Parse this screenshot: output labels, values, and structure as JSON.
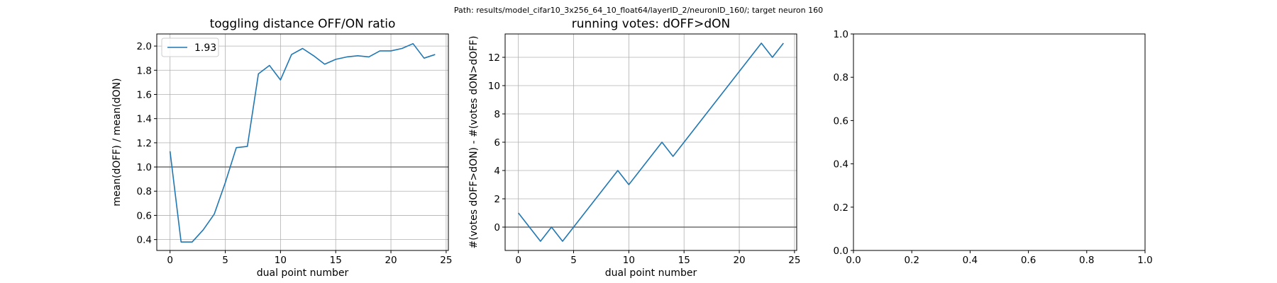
{
  "figure": {
    "suptitle": "Path: results/model_cifar10_3x256_64_10_float64/layerID_2/neuronID_160/; target neuron 160"
  },
  "chart_data": [
    {
      "type": "line",
      "title": "toggling distance OFF/ON ratio",
      "xlabel": "dual point number",
      "ylabel": "mean(dOFF) / mean(dON)",
      "xlim": [
        -1.2,
        25.2
      ],
      "ylim": [
        0.31,
        2.1
      ],
      "xticks": [
        0,
        5,
        10,
        15,
        20,
        25
      ],
      "yticks": [
        0.4,
        0.6,
        0.8,
        1.0,
        1.2,
        1.4,
        1.6,
        1.8,
        2.0
      ],
      "xtick_labels": [
        "0",
        "5",
        "10",
        "15",
        "20",
        "25"
      ],
      "ytick_labels": [
        "0.4",
        "0.6",
        "0.8",
        "1.0",
        "1.2",
        "1.4",
        "1.6",
        "1.8",
        "2.0"
      ],
      "grid": true,
      "reference_line": 1.0,
      "legend": {
        "position": "upper-left",
        "entries": [
          "1.93"
        ]
      },
      "series": [
        {
          "name": "1.93",
          "color": "#1f77b4",
          "x": [
            0,
            1,
            2,
            3,
            4,
            5,
            6,
            7,
            8,
            9,
            10,
            11,
            12,
            13,
            14,
            15,
            16,
            17,
            18,
            19,
            20,
            21,
            22,
            23,
            24
          ],
          "y": [
            1.13,
            0.38,
            0.38,
            0.48,
            0.61,
            0.87,
            1.16,
            1.17,
            1.77,
            1.84,
            1.72,
            1.93,
            1.98,
            1.92,
            1.85,
            1.89,
            1.91,
            1.92,
            1.91,
            1.96,
            1.96,
            1.98,
            2.02,
            1.9,
            1.93
          ]
        }
      ]
    },
    {
      "type": "line",
      "title": "running votes: dOFF>dON",
      "xlabel": "dual point number",
      "ylabel": "#(votes dOFF>dON) - #(votes dON>dOFF)",
      "xlim": [
        -1.2,
        25.2
      ],
      "ylim": [
        -1.65,
        13.65
      ],
      "xticks": [
        0,
        5,
        10,
        15,
        20,
        25
      ],
      "yticks": [
        0,
        2,
        4,
        6,
        8,
        10,
        12
      ],
      "xtick_labels": [
        "0",
        "5",
        "10",
        "15",
        "20",
        "25"
      ],
      "ytick_labels": [
        "0",
        "2",
        "4",
        "6",
        "8",
        "10",
        "12"
      ],
      "grid": true,
      "reference_line": 0,
      "series": [
        {
          "color": "#1f77b4",
          "x": [
            0,
            1,
            2,
            3,
            4,
            5,
            6,
            7,
            8,
            9,
            10,
            11,
            12,
            13,
            14,
            15,
            16,
            17,
            18,
            19,
            20,
            21,
            22,
            23,
            24
          ],
          "y": [
            1,
            0,
            -1,
            0,
            -1,
            0,
            1,
            2,
            3,
            4,
            3,
            4,
            5,
            6,
            5,
            6,
            7,
            8,
            9,
            10,
            11,
            12,
            13,
            12,
            13
          ]
        }
      ]
    },
    {
      "type": "line",
      "title": "",
      "xlabel": "",
      "ylabel": "",
      "xlim": [
        0,
        1
      ],
      "ylim": [
        0,
        1
      ],
      "xticks": [
        0,
        0.2,
        0.4,
        0.6,
        0.8,
        1.0
      ],
      "yticks": [
        0,
        0.2,
        0.4,
        0.6,
        0.8,
        1.0
      ],
      "xtick_labels": [
        "0.0",
        "0.2",
        "0.4",
        "0.6",
        "0.8",
        "1.0"
      ],
      "ytick_labels": [
        "0.0",
        "0.2",
        "0.4",
        "0.6",
        "0.8",
        "1.0"
      ],
      "grid": false,
      "series": []
    }
  ]
}
